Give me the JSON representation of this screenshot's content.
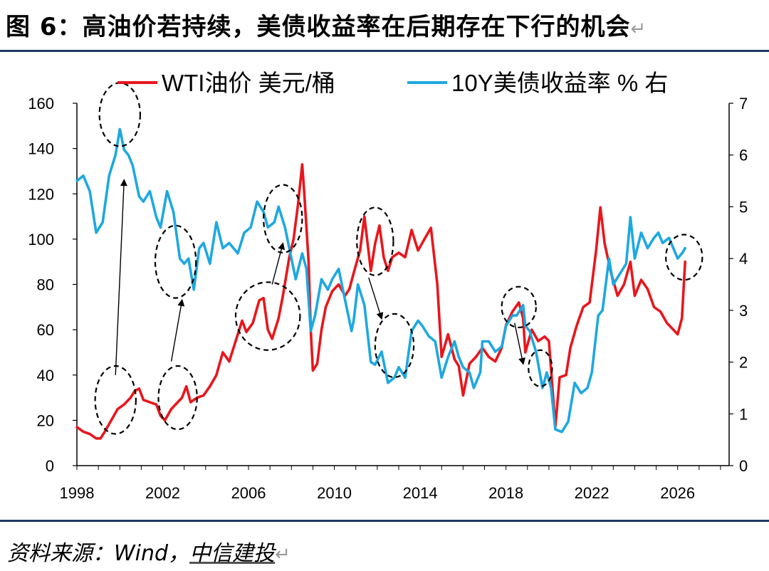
{
  "header": {
    "title": "图 6：高油价若持续，美债收益率在后期存在下行的机会",
    "return_mark": "↵"
  },
  "footer": {
    "source_label": "资料来源：",
    "source_wind": "Wind，",
    "source_org": "中信建投",
    "return_mark": "↵"
  },
  "colors": {
    "oil": "#e8161c",
    "yield": "#1ea8e0",
    "rule": "#1f3864"
  },
  "chart_data": {
    "type": "line",
    "title": "",
    "xlabel": "",
    "x_ticks": [
      "1998",
      "2002",
      "2006",
      "2010",
      "2014",
      "2018",
      "2022",
      "2026"
    ],
    "x_range": [
      1998,
      2028.4
    ],
    "y_left": {
      "range": [
        0,
        160
      ],
      "ticks": [
        0,
        20,
        40,
        60,
        80,
        100,
        120,
        140,
        160
      ]
    },
    "y_right": {
      "range": [
        0,
        7
      ],
      "ticks": [
        0,
        1,
        2,
        3,
        4,
        5,
        6,
        7
      ]
    },
    "series": [
      {
        "name": "WTI油价 美元/桶",
        "axis": "left",
        "color": "#e8161c",
        "points": [
          [
            1998.0,
            17
          ],
          [
            1998.3,
            15
          ],
          [
            1998.6,
            14
          ],
          [
            1998.9,
            12
          ],
          [
            1999.1,
            12
          ],
          [
            1999.3,
            15
          ],
          [
            1999.6,
            20
          ],
          [
            1999.9,
            25
          ],
          [
            2000.2,
            27
          ],
          [
            2000.5,
            30
          ],
          [
            2000.7,
            33
          ],
          [
            2000.9,
            34
          ],
          [
            2001.1,
            29
          ],
          [
            2001.4,
            28
          ],
          [
            2001.7,
            27
          ],
          [
            2001.9,
            22
          ],
          [
            2002.1,
            20
          ],
          [
            2002.4,
            25
          ],
          [
            2002.7,
            28
          ],
          [
            2002.9,
            30
          ],
          [
            2003.1,
            35
          ],
          [
            2003.3,
            28
          ],
          [
            2003.6,
            30
          ],
          [
            2003.9,
            31
          ],
          [
            2004.2,
            35
          ],
          [
            2004.5,
            40
          ],
          [
            2004.8,
            50
          ],
          [
            2005.1,
            46
          ],
          [
            2005.4,
            55
          ],
          [
            2005.7,
            64
          ],
          [
            2005.9,
            59
          ],
          [
            2006.2,
            63
          ],
          [
            2006.5,
            73
          ],
          [
            2006.7,
            74
          ],
          [
            2006.9,
            60
          ],
          [
            2007.1,
            56
          ],
          [
            2007.4,
            65
          ],
          [
            2007.6,
            75
          ],
          [
            2007.9,
            92
          ],
          [
            2008.1,
            100
          ],
          [
            2008.3,
            115
          ],
          [
            2008.5,
            133
          ],
          [
            2008.6,
            120
          ],
          [
            2008.8,
            90
          ],
          [
            2008.9,
            60
          ],
          [
            2009.0,
            42
          ],
          [
            2009.2,
            45
          ],
          [
            2009.4,
            60
          ],
          [
            2009.6,
            70
          ],
          [
            2009.9,
            77
          ],
          [
            2010.2,
            80
          ],
          [
            2010.5,
            75
          ],
          [
            2010.7,
            78
          ],
          [
            2010.9,
            85
          ],
          [
            2011.2,
            95
          ],
          [
            2011.4,
            110
          ],
          [
            2011.7,
            86
          ],
          [
            2011.9,
            98
          ],
          [
            2012.1,
            106
          ],
          [
            2012.3,
            92
          ],
          [
            2012.5,
            86
          ],
          [
            2012.7,
            92
          ],
          [
            2013.0,
            94
          ],
          [
            2013.3,
            92
          ],
          [
            2013.6,
            104
          ],
          [
            2013.9,
            95
          ],
          [
            2014.2,
            100
          ],
          [
            2014.5,
            105
          ],
          [
            2014.8,
            80
          ],
          [
            2015.0,
            48
          ],
          [
            2015.3,
            58
          ],
          [
            2015.6,
            47
          ],
          [
            2015.8,
            44
          ],
          [
            2016.0,
            31
          ],
          [
            2016.3,
            45
          ],
          [
            2016.6,
            48
          ],
          [
            2016.9,
            52
          ],
          [
            2017.2,
            48
          ],
          [
            2017.5,
            46
          ],
          [
            2017.8,
            52
          ],
          [
            2018.0,
            62
          ],
          [
            2018.3,
            68
          ],
          [
            2018.6,
            72
          ],
          [
            2018.8,
            65
          ],
          [
            2018.9,
            50
          ],
          [
            2019.2,
            60
          ],
          [
            2019.5,
            55
          ],
          [
            2019.8,
            57
          ],
          [
            2020.0,
            55
          ],
          [
            2020.2,
            30
          ],
          [
            2020.3,
            17
          ],
          [
            2020.5,
            39
          ],
          [
            2020.8,
            40
          ],
          [
            2021.0,
            52
          ],
          [
            2021.3,
            62
          ],
          [
            2021.6,
            70
          ],
          [
            2021.9,
            72
          ],
          [
            2022.2,
            95
          ],
          [
            2022.4,
            114
          ],
          [
            2022.6,
            98
          ],
          [
            2022.9,
            85
          ],
          [
            2023.2,
            75
          ],
          [
            2023.5,
            80
          ],
          [
            2023.8,
            90
          ],
          [
            2024.0,
            75
          ],
          [
            2024.3,
            82
          ],
          [
            2024.6,
            78
          ],
          [
            2024.9,
            70
          ],
          [
            2025.2,
            68
          ],
          [
            2025.5,
            63
          ],
          [
            2025.8,
            60
          ],
          [
            2026.0,
            58
          ],
          [
            2026.2,
            65
          ],
          [
            2026.35,
            90
          ]
        ]
      },
      {
        "name": "10Y美债收益率 % 右",
        "axis": "right",
        "color": "#1ea8e0",
        "points": [
          [
            1998.0,
            5.5
          ],
          [
            1998.3,
            5.6
          ],
          [
            1998.6,
            5.3
          ],
          [
            1998.9,
            4.5
          ],
          [
            1999.2,
            4.7
          ],
          [
            1999.5,
            5.6
          ],
          [
            1999.8,
            6.0
          ],
          [
            2000.0,
            6.5
          ],
          [
            2000.2,
            6.1
          ],
          [
            2000.4,
            6.0
          ],
          [
            2000.6,
            5.8
          ],
          [
            2000.9,
            5.2
          ],
          [
            2001.1,
            5.1
          ],
          [
            2001.4,
            5.3
          ],
          [
            2001.7,
            4.8
          ],
          [
            2001.9,
            4.6
          ],
          [
            2002.2,
            5.3
          ],
          [
            2002.5,
            4.9
          ],
          [
            2002.8,
            4.0
          ],
          [
            2003.0,
            3.9
          ],
          [
            2003.2,
            4.0
          ],
          [
            2003.45,
            3.4
          ],
          [
            2003.7,
            4.2
          ],
          [
            2003.9,
            4.3
          ],
          [
            2004.2,
            3.9
          ],
          [
            2004.5,
            4.7
          ],
          [
            2004.8,
            4.2
          ],
          [
            2005.1,
            4.3
          ],
          [
            2005.5,
            4.1
          ],
          [
            2005.8,
            4.5
          ],
          [
            2006.1,
            4.6
          ],
          [
            2006.4,
            5.1
          ],
          [
            2006.7,
            4.9
          ],
          [
            2006.9,
            4.6
          ],
          [
            2007.2,
            4.7
          ],
          [
            2007.4,
            5.0
          ],
          [
            2007.7,
            4.6
          ],
          [
            2007.9,
            4.2
          ],
          [
            2008.2,
            3.6
          ],
          [
            2008.5,
            4.1
          ],
          [
            2008.7,
            3.8
          ],
          [
            2008.9,
            2.6
          ],
          [
            2009.1,
            2.9
          ],
          [
            2009.4,
            3.6
          ],
          [
            2009.7,
            3.4
          ],
          [
            2009.9,
            3.6
          ],
          [
            2010.2,
            3.8
          ],
          [
            2010.5,
            3.2
          ],
          [
            2010.8,
            2.6
          ],
          [
            2010.9,
            2.8
          ],
          [
            2011.1,
            3.5
          ],
          [
            2011.4,
            3.1
          ],
          [
            2011.7,
            2.0
          ],
          [
            2011.9,
            1.95
          ],
          [
            2012.2,
            2.2
          ],
          [
            2012.5,
            1.6
          ],
          [
            2012.8,
            1.7
          ],
          [
            2013.0,
            1.9
          ],
          [
            2013.3,
            1.7
          ],
          [
            2013.6,
            2.6
          ],
          [
            2013.9,
            2.8
          ],
          [
            2014.1,
            2.7
          ],
          [
            2014.4,
            2.5
          ],
          [
            2014.7,
            2.4
          ],
          [
            2015.0,
            1.7
          ],
          [
            2015.3,
            2.1
          ],
          [
            2015.6,
            2.4
          ],
          [
            2015.8,
            2.1
          ],
          [
            2016.0,
            1.9
          ],
          [
            2016.3,
            1.8
          ],
          [
            2016.5,
            1.5
          ],
          [
            2016.8,
            1.8
          ],
          [
            2016.9,
            2.4
          ],
          [
            2017.2,
            2.4
          ],
          [
            2017.5,
            2.2
          ],
          [
            2017.8,
            2.3
          ],
          [
            2018.0,
            2.7
          ],
          [
            2018.3,
            2.9
          ],
          [
            2018.5,
            2.9
          ],
          [
            2018.8,
            3.1
          ],
          [
            2018.9,
            2.7
          ],
          [
            2019.1,
            2.6
          ],
          [
            2019.4,
            2.2
          ],
          [
            2019.7,
            1.5
          ],
          [
            2019.9,
            1.8
          ],
          [
            2020.1,
            1.5
          ],
          [
            2020.3,
            0.7
          ],
          [
            2020.6,
            0.65
          ],
          [
            2020.9,
            0.85
          ],
          [
            2021.2,
            1.6
          ],
          [
            2021.5,
            1.4
          ],
          [
            2021.8,
            1.5
          ],
          [
            2022.0,
            1.8
          ],
          [
            2022.3,
            2.9
          ],
          [
            2022.5,
            3.0
          ],
          [
            2022.8,
            4.0
          ],
          [
            2023.0,
            3.5
          ],
          [
            2023.3,
            3.7
          ],
          [
            2023.6,
            3.9
          ],
          [
            2023.8,
            4.8
          ],
          [
            2024.0,
            4.0
          ],
          [
            2024.3,
            4.5
          ],
          [
            2024.6,
            4.2
          ],
          [
            2024.9,
            4.4
          ],
          [
            2025.1,
            4.5
          ],
          [
            2025.3,
            4.3
          ],
          [
            2025.6,
            4.4
          ],
          [
            2025.9,
            4.1
          ],
          [
            2026.0,
            4.0
          ],
          [
            2026.2,
            4.1
          ],
          [
            2026.35,
            4.2
          ]
        ]
      }
    ],
    "legend_position": "top-center",
    "annotations": {
      "circles": [
        {
          "x": 2000.0,
          "y": 155,
          "rx": 0.95,
          "ry": 14
        },
        {
          "x": 2002.6,
          "y": 90,
          "rx": 0.95,
          "ry": 16
        },
        {
          "x": 2007.6,
          "y": 109,
          "rx": 0.9,
          "ry": 15
        },
        {
          "x": 2006.9,
          "y": 66,
          "rx": 1.5,
          "ry": 15
        },
        {
          "x": 2011.9,
          "y": 99,
          "rx": 0.85,
          "ry": 15
        },
        {
          "x": 2012.8,
          "y": 53,
          "rx": 0.9,
          "ry": 14
        },
        {
          "x": 2018.6,
          "y": 70,
          "rx": 0.8,
          "ry": 9
        },
        {
          "x": 2019.6,
          "y": 43,
          "rx": 0.55,
          "ry": 8
        },
        {
          "x": 1999.8,
          "y": 29,
          "rx": 0.95,
          "ry": 15
        },
        {
          "x": 2002.7,
          "y": 30,
          "rx": 0.9,
          "ry": 14
        },
        {
          "x": 2026.3,
          "y": 92,
          "rx": 0.85,
          "ry": 10
        }
      ],
      "arrows": [
        {
          "from": [
            1999.8,
            40
          ],
          "to": [
            2000.2,
            126
          ]
        },
        {
          "from": [
            2002.4,
            46
          ],
          "to": [
            2002.9,
            73
          ]
        },
        {
          "from": [
            2007.1,
            80
          ],
          "to": [
            2007.6,
            98
          ]
        },
        {
          "from": [
            2011.6,
            83
          ],
          "to": [
            2012.2,
            65
          ]
        },
        {
          "from": [
            2018.4,
            63
          ],
          "to": [
            2018.8,
            45
          ]
        }
      ]
    }
  }
}
